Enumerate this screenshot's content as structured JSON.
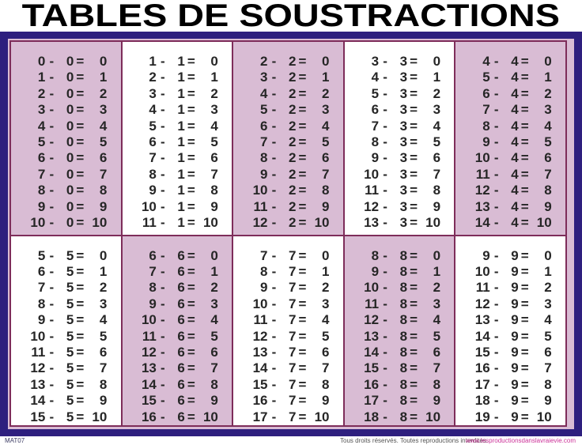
{
  "title": "TABLES DE SOUSTRACTIONS",
  "signs": {
    "minus": "-",
    "equals": "="
  },
  "colors": {
    "frame": "#2e1f7e",
    "cell_border": "#7e2d5a",
    "cell_pink": "#d9bcd4",
    "cell_white": "#ffffff",
    "number_text": "#262626",
    "website_link": "#cc3399"
  },
  "footer": {
    "code": "MAT07",
    "rights": "Tous droits réservés. Toutes reproductions interdites.",
    "website": "www.lesproductionsdanslavraievie.com"
  },
  "tables": [
    {
      "n": 0,
      "bg": "pink",
      "rows": [
        [
          0,
          0,
          0
        ],
        [
          1,
          0,
          1
        ],
        [
          2,
          0,
          2
        ],
        [
          3,
          0,
          3
        ],
        [
          4,
          0,
          4
        ],
        [
          5,
          0,
          5
        ],
        [
          6,
          0,
          6
        ],
        [
          7,
          0,
          7
        ],
        [
          8,
          0,
          8
        ],
        [
          9,
          0,
          9
        ],
        [
          10,
          0,
          10
        ]
      ]
    },
    {
      "n": 1,
      "bg": "white",
      "rows": [
        [
          1,
          1,
          0
        ],
        [
          2,
          1,
          1
        ],
        [
          3,
          1,
          2
        ],
        [
          4,
          1,
          3
        ],
        [
          5,
          1,
          4
        ],
        [
          6,
          1,
          5
        ],
        [
          7,
          1,
          6
        ],
        [
          8,
          1,
          7
        ],
        [
          9,
          1,
          8
        ],
        [
          10,
          1,
          9
        ],
        [
          11,
          1,
          10
        ]
      ]
    },
    {
      "n": 2,
      "bg": "pink",
      "rows": [
        [
          2,
          2,
          0
        ],
        [
          3,
          2,
          1
        ],
        [
          4,
          2,
          2
        ],
        [
          5,
          2,
          3
        ],
        [
          6,
          2,
          4
        ],
        [
          7,
          2,
          5
        ],
        [
          8,
          2,
          6
        ],
        [
          9,
          2,
          7
        ],
        [
          10,
          2,
          8
        ],
        [
          11,
          2,
          9
        ],
        [
          12,
          2,
          10
        ]
      ]
    },
    {
      "n": 3,
      "bg": "white",
      "rows": [
        [
          3,
          3,
          0
        ],
        [
          4,
          3,
          1
        ],
        [
          5,
          3,
          2
        ],
        [
          6,
          3,
          3
        ],
        [
          7,
          3,
          4
        ],
        [
          8,
          3,
          5
        ],
        [
          9,
          3,
          6
        ],
        [
          10,
          3,
          7
        ],
        [
          11,
          3,
          8
        ],
        [
          12,
          3,
          9
        ],
        [
          13,
          3,
          10
        ]
      ]
    },
    {
      "n": 4,
      "bg": "pink",
      "rows": [
        [
          4,
          4,
          0
        ],
        [
          5,
          4,
          1
        ],
        [
          6,
          4,
          2
        ],
        [
          7,
          4,
          3
        ],
        [
          8,
          4,
          4
        ],
        [
          9,
          4,
          5
        ],
        [
          10,
          4,
          6
        ],
        [
          11,
          4,
          7
        ],
        [
          12,
          4,
          8
        ],
        [
          13,
          4,
          9
        ],
        [
          14,
          4,
          10
        ]
      ]
    },
    {
      "n": 5,
      "bg": "white",
      "rows": [
        [
          5,
          5,
          0
        ],
        [
          6,
          5,
          1
        ],
        [
          7,
          5,
          2
        ],
        [
          8,
          5,
          3
        ],
        [
          9,
          5,
          4
        ],
        [
          10,
          5,
          5
        ],
        [
          11,
          5,
          6
        ],
        [
          12,
          5,
          7
        ],
        [
          13,
          5,
          8
        ],
        [
          14,
          5,
          9
        ],
        [
          15,
          5,
          10
        ]
      ]
    },
    {
      "n": 6,
      "bg": "pink",
      "rows": [
        [
          6,
          6,
          0
        ],
        [
          7,
          6,
          1
        ],
        [
          8,
          6,
          2
        ],
        [
          9,
          6,
          3
        ],
        [
          10,
          6,
          4
        ],
        [
          11,
          6,
          5
        ],
        [
          12,
          6,
          6
        ],
        [
          13,
          6,
          7
        ],
        [
          14,
          6,
          8
        ],
        [
          15,
          6,
          9
        ],
        [
          16,
          6,
          10
        ]
      ]
    },
    {
      "n": 7,
      "bg": "white",
      "rows": [
        [
          7,
          7,
          0
        ],
        [
          8,
          7,
          1
        ],
        [
          9,
          7,
          2
        ],
        [
          10,
          7,
          3
        ],
        [
          11,
          7,
          4
        ],
        [
          12,
          7,
          5
        ],
        [
          13,
          7,
          6
        ],
        [
          14,
          7,
          7
        ],
        [
          15,
          7,
          8
        ],
        [
          16,
          7,
          9
        ],
        [
          17,
          7,
          10
        ]
      ]
    },
    {
      "n": 8,
      "bg": "pink",
      "rows": [
        [
          8,
          8,
          0
        ],
        [
          9,
          8,
          1
        ],
        [
          10,
          8,
          2
        ],
        [
          11,
          8,
          3
        ],
        [
          12,
          8,
          4
        ],
        [
          13,
          8,
          5
        ],
        [
          14,
          8,
          6
        ],
        [
          15,
          8,
          7
        ],
        [
          16,
          8,
          8
        ],
        [
          17,
          8,
          9
        ],
        [
          18,
          8,
          10
        ]
      ]
    },
    {
      "n": 9,
      "bg": "white",
      "rows": [
        [
          9,
          9,
          0
        ],
        [
          10,
          9,
          1
        ],
        [
          11,
          9,
          2
        ],
        [
          12,
          9,
          3
        ],
        [
          13,
          9,
          4
        ],
        [
          14,
          9,
          5
        ],
        [
          15,
          9,
          6
        ],
        [
          16,
          9,
          7
        ],
        [
          17,
          9,
          8
        ],
        [
          18,
          9,
          9
        ],
        [
          19,
          9,
          10
        ]
      ]
    }
  ]
}
